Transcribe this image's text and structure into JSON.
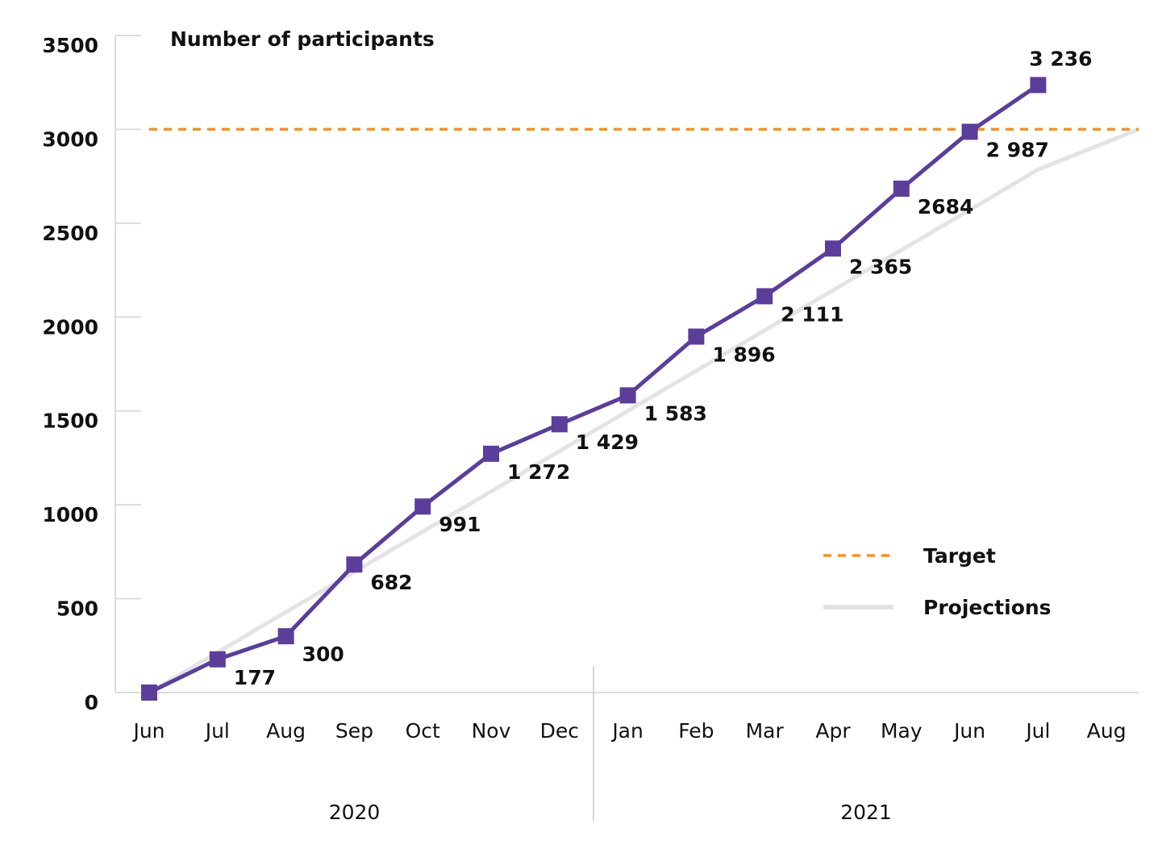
{
  "chart_data": {
    "type": "line",
    "title": "Number of participants",
    "categories": [
      "Jun",
      "Jul",
      "Aug",
      "Sep",
      "Oct",
      "Nov",
      "Dec",
      "Jan",
      "Feb",
      "Mar",
      "Apr",
      "May",
      "Jun",
      "Jul",
      "Aug"
    ],
    "year_groups": [
      {
        "label": "2020",
        "months": [
          "Jun",
          "Jul",
          "Aug",
          "Sep",
          "Oct",
          "Nov",
          "Dec"
        ]
      },
      {
        "label": "2021",
        "months": [
          "Jan",
          "Feb",
          "Mar",
          "Apr",
          "May",
          "Jun",
          "Jul",
          "Aug"
        ]
      }
    ],
    "ylim": [
      0,
      3500
    ],
    "yticks": [
      0,
      500,
      1000,
      1500,
      2000,
      2500,
      3000,
      3500
    ],
    "series": [
      {
        "name": "Participants",
        "color": "#5b3e9a",
        "marker": "square",
        "values": [
          0,
          177,
          300,
          682,
          991,
          1272,
          1429,
          1583,
          1896,
          2111,
          2365,
          2684,
          2987,
          3236,
          null
        ],
        "labels": [
          "",
          "177",
          "300",
          "682",
          "991",
          "1 272",
          "1 429",
          "1 583",
          "1 896",
          "2 111",
          "2 365",
          "2684",
          "2 987",
          "3 236",
          ""
        ]
      },
      {
        "name": "Projections",
        "color": "#e3e3e3",
        "style": "solid",
        "values": [
          0,
          214,
          429,
          643,
          857,
          1071,
          1286,
          1500,
          1714,
          1929,
          2143,
          2357,
          2571,
          2786,
          3000
        ]
      },
      {
        "name": "Target",
        "color": "#f0922b",
        "style": "dashed",
        "values": [
          3000,
          3000,
          3000,
          3000,
          3000,
          3000,
          3000,
          3000,
          3000,
          3000,
          3000,
          3000,
          3000,
          3000,
          3000
        ]
      }
    ],
    "legend": {
      "placement": "bottom-right",
      "items": [
        {
          "label": "Target",
          "color": "#f0922b",
          "style": "dashed"
        },
        {
          "label": "Projections",
          "color": "#e3e3e3",
          "style": "solid"
        }
      ]
    },
    "grid": false
  }
}
